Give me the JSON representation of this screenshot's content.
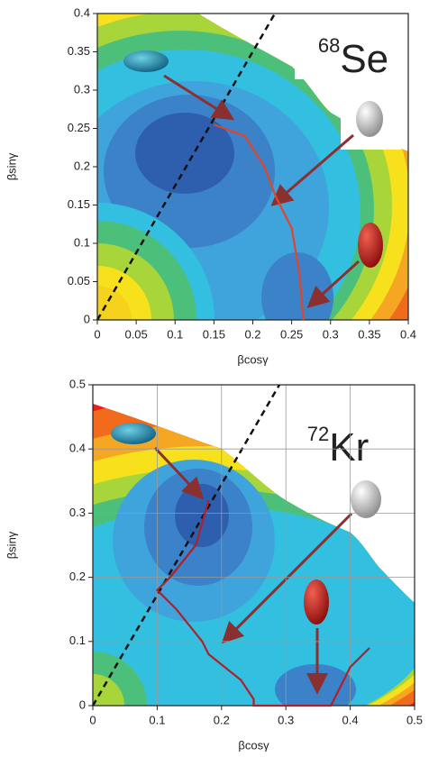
{
  "chart_data": [
    {
      "type": "contour",
      "title_superscript": "68",
      "title": "Se",
      "xlabel": "βcosγ",
      "ylabel": "βsinγ",
      "xlim": [
        0,
        0.4
      ],
      "ylim": [
        0,
        0.4
      ],
      "xticks": [
        0,
        0.05,
        0.1,
        0.15,
        0.2,
        0.25,
        0.3,
        0.35,
        0.4
      ],
      "yticks": [
        0,
        0.05,
        0.1,
        0.15,
        0.2,
        0.25,
        0.3,
        0.35,
        0.4
      ],
      "grid": false,
      "series": [
        {
          "color": "#e0452a",
          "x": [
            0.15,
            0.19,
            0.215,
            0.23,
            0.25,
            0.26,
            0.265
          ],
          "values": [
            0.255,
            0.24,
            0.2,
            0.16,
            0.12,
            0.06,
            0
          ]
        }
      ]
    },
    {
      "type": "contour",
      "title_superscript": "72",
      "title": "Kr",
      "xlabel": "βcosγ",
      "ylabel": "βsinγ",
      "xlim": [
        0,
        0.5
      ],
      "ylim": [
        0,
        0.5
      ],
      "xticks": [
        0,
        0.1,
        0.2,
        0.3,
        0.4,
        0.5
      ],
      "yticks": [
        0,
        0.1,
        0.2,
        0.3,
        0.4,
        0.5
      ],
      "grid": true,
      "series": [
        {
          "color": "#b0202a",
          "x": [
            0.18,
            0.16,
            0.12,
            0.1,
            0.13,
            0.17,
            0.18,
            0.23,
            0.25,
            0.25,
            0.37,
            0.4,
            0.43
          ],
          "values": [
            0.32,
            0.25,
            0.2,
            0.18,
            0.15,
            0.1,
            0.08,
            0.04,
            0.01,
            0,
            0,
            0.06,
            0.09
          ]
        }
      ]
    }
  ]
}
